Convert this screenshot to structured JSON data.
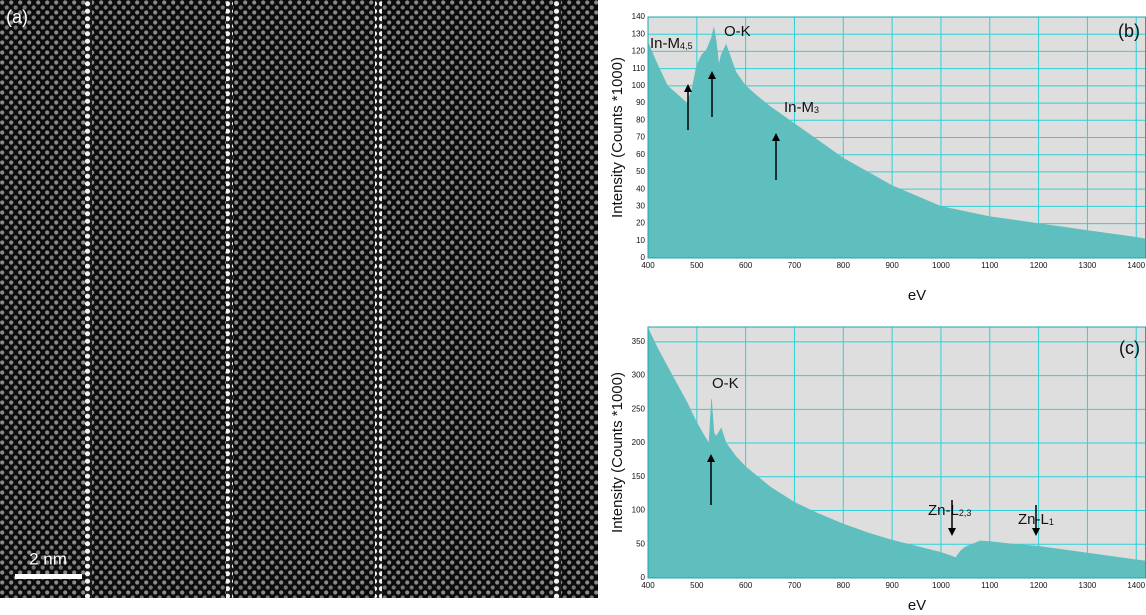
{
  "image": {
    "label": "(a)",
    "scale_bar": "2 nm"
  },
  "chart_data": [
    {
      "type": "area",
      "label": "(b)",
      "x_label": "eV",
      "y_label": "Intensity (Counts *1000)",
      "color": "#5fbfbe",
      "grid": true,
      "xlim": [
        400,
        1420
      ],
      "ylim": [
        0,
        140
      ],
      "xticks": [
        400,
        500,
        600,
        700,
        800,
        900,
        1000,
        1100,
        1200,
        1300,
        1400
      ],
      "yticks": [
        0,
        10,
        20,
        30,
        40,
        50,
        60,
        70,
        80,
        90,
        100,
        110,
        120,
        130,
        140
      ],
      "x": [
        400,
        420,
        440,
        460,
        480,
        490,
        500,
        510,
        520,
        530,
        535,
        540,
        545,
        550,
        560,
        570,
        580,
        600,
        620,
        650,
        680,
        700,
        750,
        800,
        850,
        900,
        950,
        1000,
        1050,
        1100,
        1150,
        1200,
        1250,
        1300,
        1350,
        1400,
        1420
      ],
      "values": [
        125,
        112,
        100,
        95,
        90,
        98,
        112,
        118,
        121,
        128,
        134,
        125,
        112,
        118,
        124,
        116,
        108,
        100,
        95,
        88,
        82,
        78,
        68,
        58,
        50,
        42,
        36,
        30,
        27,
        24,
        22,
        20,
        18,
        16,
        14,
        12,
        11
      ],
      "annotations": [
        {
          "text": "In-M",
          "subscript": "4,5"
        },
        {
          "text": "O-K"
        },
        {
          "text": "In-M",
          "subscript": "3"
        }
      ]
    },
    {
      "type": "area",
      "label": "(c)",
      "x_label": "eV",
      "y_label": "Intensity (Counts *1000)",
      "color": "#5fbfbe",
      "grid": true,
      "xlim": [
        400,
        1420
      ],
      "ylim": [
        0,
        372
      ],
      "xticks": [
        400,
        500,
        600,
        700,
        800,
        900,
        1000,
        1100,
        1200,
        1300,
        1400
      ],
      "yticks": [
        0,
        50,
        100,
        150,
        200,
        250,
        300,
        350
      ],
      "x": [
        400,
        420,
        450,
        480,
        500,
        520,
        525,
        530,
        535,
        540,
        550,
        560,
        580,
        600,
        650,
        700,
        750,
        800,
        850,
        900,
        950,
        1000,
        1020,
        1030,
        1040,
        1050,
        1080,
        1100,
        1150,
        1200,
        1250,
        1300,
        1350,
        1400,
        1420
      ],
      "values": [
        370,
        340,
        300,
        260,
        230,
        205,
        200,
        265,
        215,
        210,
        222,
        200,
        180,
        165,
        135,
        112,
        95,
        80,
        67,
        56,
        47,
        38,
        33,
        30,
        40,
        46,
        55,
        54,
        50,
        47,
        42,
        37,
        32,
        27,
        25
      ],
      "annotations": [
        {
          "text": "O-K"
        },
        {
          "text": "Zn-L",
          "subscript": "2,3"
        },
        {
          "text": "Zn-L",
          "subscript": "1"
        }
      ]
    }
  ]
}
